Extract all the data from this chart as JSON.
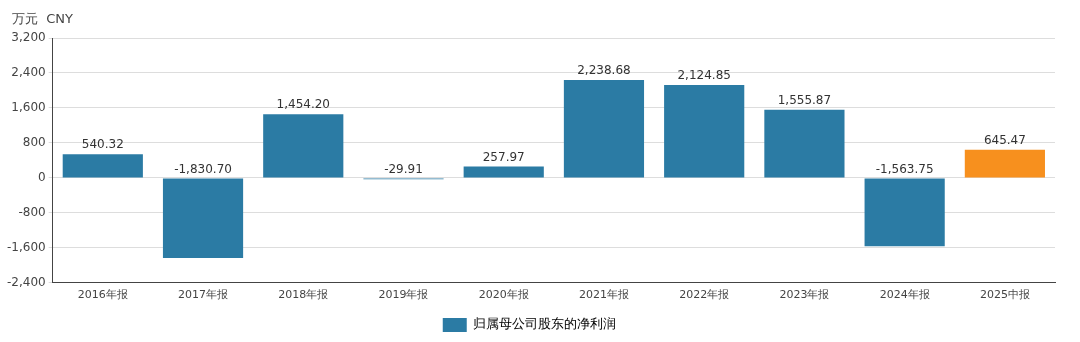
{
  "chart_data": {
    "type": "bar",
    "ylabel": "万元  CNY",
    "categories": [
      "2016年报",
      "2017年报",
      "2018年报",
      "2019年报",
      "2020年报",
      "2021年报",
      "2022年报",
      "2023年报",
      "2024年报",
      "2025中报"
    ],
    "series": [
      {
        "name": "归属母公司股东的净利润",
        "color": "#2b7ba4",
        "colors": [
          "#2b7ba4",
          "#2b7ba4",
          "#2b7ba4",
          "#2b7ba4",
          "#2b7ba4",
          "#2b7ba4",
          "#2b7ba4",
          "#2b7ba4",
          "#2b7ba4",
          "#f7901e"
        ],
        "values": [
          540.32,
          -1830.7,
          1454.2,
          -29.91,
          257.97,
          2238.68,
          2124.85,
          1555.87,
          -1563.75,
          645.47
        ],
        "value_labels": [
          "540.32",
          "-1,830.70",
          "1,454.20",
          "-29.91",
          "257.97",
          "2,238.68",
          "2,124.85",
          "1,555.87",
          "-1,563.75",
          "645.47"
        ]
      }
    ],
    "ylim": [
      -2400,
      3200
    ],
    "yticks": [
      {
        "value": -2400,
        "label": "-2,400"
      },
      {
        "value": -1600,
        "label": "-1,600"
      },
      -800,
      0,
      800,
      {
        "value": 1600,
        "label": "1,600"
      },
      {
        "value": 2400,
        "label": "2,400"
      },
      {
        "value": 3200,
        "label": "3,200"
      }
    ],
    "grid": "y",
    "legend": "bottom"
  }
}
